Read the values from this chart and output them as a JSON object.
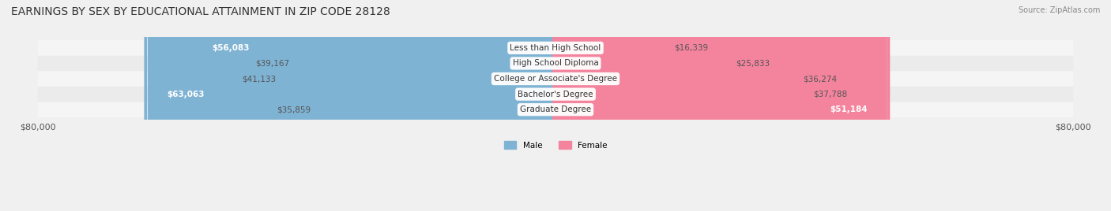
{
  "title": "EARNINGS BY SEX BY EDUCATIONAL ATTAINMENT IN ZIP CODE 28128",
  "source": "Source: ZipAtlas.com",
  "categories": [
    "Less than High School",
    "High School Diploma",
    "College or Associate's Degree",
    "Bachelor's Degree",
    "Graduate Degree"
  ],
  "male_values": [
    56083,
    39167,
    41133,
    63063,
    35859
  ],
  "female_values": [
    16339,
    25833,
    36274,
    37788,
    51184
  ],
  "male_color": "#7fb3d3",
  "female_color": "#f4849e",
  "max_val": 80000,
  "bg_color": "#f0f0f0",
  "bar_bg_color": "#e8e8e8",
  "row_bg_colors": [
    "#f5f5f5",
    "#ebebeb"
  ],
  "title_fontsize": 10,
  "label_fontsize": 7.5,
  "tick_fontsize": 8
}
